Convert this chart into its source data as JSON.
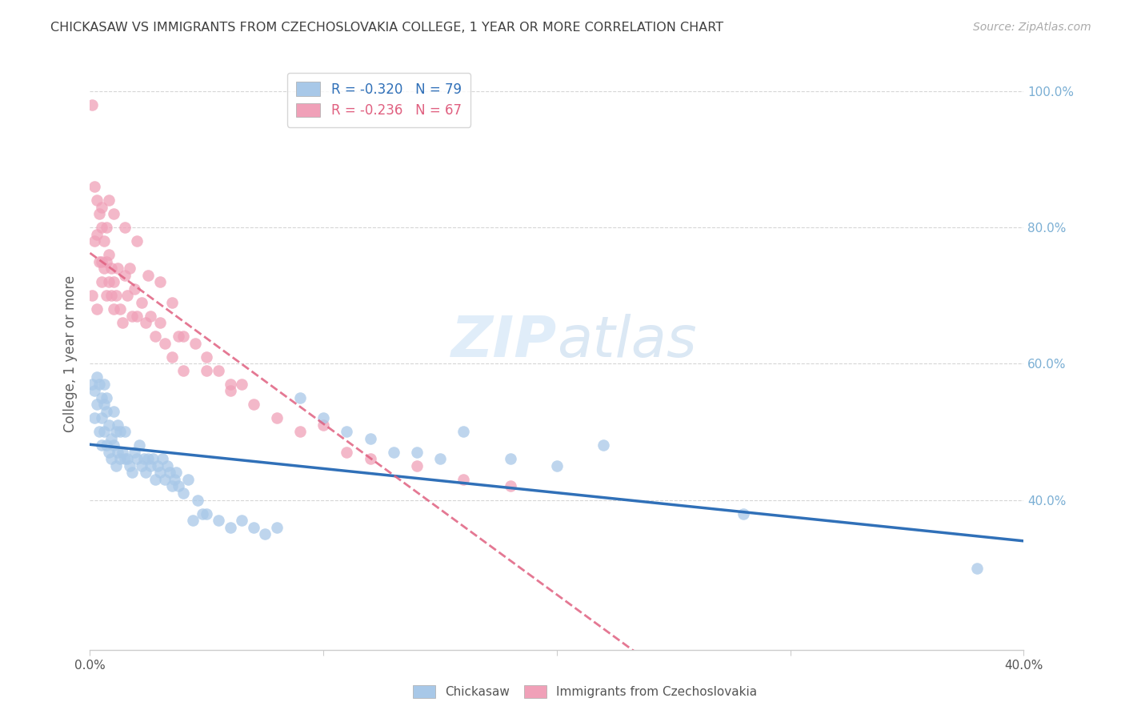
{
  "title": "CHICKASAW VS IMMIGRANTS FROM CZECHOSLOVAKIA COLLEGE, 1 YEAR OR MORE CORRELATION CHART",
  "source": "Source: ZipAtlas.com",
  "ylabel": "College, 1 year or more",
  "xlim": [
    0.0,
    0.4
  ],
  "ylim": [
    0.18,
    1.05
  ],
  "yticks": [
    0.4,
    0.6,
    0.8,
    1.0
  ],
  "ytick_labels": [
    "40.0%",
    "60.0%",
    "80.0%",
    "100.0%"
  ],
  "xticks": [
    0.0,
    0.1,
    0.2,
    0.3,
    0.4
  ],
  "xtick_labels": [
    "0.0%",
    "",
    "",
    "",
    "40.0%"
  ],
  "blue_color": "#a8c8e8",
  "pink_color": "#f0a0b8",
  "blue_line_color": "#3070b8",
  "pink_line_color": "#e06080",
  "watermark_color": "#ddeeff",
  "background_color": "#ffffff",
  "grid_color": "#cccccc",
  "title_color": "#404040",
  "source_color": "#aaaaaa",
  "axis_label_color": "#606060",
  "right_tick_color": "#7bafd4",
  "legend_border_color": "#cccccc",
  "chickasaw_x": [
    0.001,
    0.002,
    0.002,
    0.003,
    0.003,
    0.004,
    0.004,
    0.005,
    0.005,
    0.005,
    0.006,
    0.006,
    0.006,
    0.007,
    0.007,
    0.007,
    0.008,
    0.008,
    0.009,
    0.009,
    0.01,
    0.01,
    0.011,
    0.011,
    0.012,
    0.012,
    0.013,
    0.013,
    0.014,
    0.015,
    0.015,
    0.016,
    0.017,
    0.018,
    0.019,
    0.02,
    0.021,
    0.022,
    0.023,
    0.024,
    0.025,
    0.026,
    0.027,
    0.028,
    0.029,
    0.03,
    0.031,
    0.032,
    0.033,
    0.034,
    0.035,
    0.036,
    0.037,
    0.038,
    0.04,
    0.042,
    0.044,
    0.046,
    0.048,
    0.05,
    0.055,
    0.06,
    0.065,
    0.07,
    0.075,
    0.08,
    0.09,
    0.1,
    0.11,
    0.12,
    0.13,
    0.14,
    0.15,
    0.16,
    0.18,
    0.2,
    0.22,
    0.28,
    0.38
  ],
  "chickasaw_y": [
    0.57,
    0.56,
    0.52,
    0.58,
    0.54,
    0.57,
    0.5,
    0.55,
    0.52,
    0.48,
    0.54,
    0.5,
    0.57,
    0.53,
    0.48,
    0.55,
    0.47,
    0.51,
    0.49,
    0.46,
    0.48,
    0.53,
    0.45,
    0.5,
    0.47,
    0.51,
    0.46,
    0.5,
    0.47,
    0.46,
    0.5,
    0.46,
    0.45,
    0.44,
    0.47,
    0.46,
    0.48,
    0.45,
    0.46,
    0.44,
    0.46,
    0.45,
    0.46,
    0.43,
    0.45,
    0.44,
    0.46,
    0.43,
    0.45,
    0.44,
    0.42,
    0.43,
    0.44,
    0.42,
    0.41,
    0.43,
    0.37,
    0.4,
    0.38,
    0.38,
    0.37,
    0.36,
    0.37,
    0.36,
    0.35,
    0.36,
    0.55,
    0.52,
    0.5,
    0.49,
    0.47,
    0.47,
    0.46,
    0.5,
    0.46,
    0.45,
    0.48,
    0.38,
    0.3
  ],
  "czech_x": [
    0.001,
    0.001,
    0.002,
    0.002,
    0.003,
    0.003,
    0.003,
    0.004,
    0.004,
    0.005,
    0.005,
    0.005,
    0.006,
    0.006,
    0.007,
    0.007,
    0.007,
    0.008,
    0.008,
    0.009,
    0.009,
    0.01,
    0.01,
    0.011,
    0.012,
    0.013,
    0.014,
    0.015,
    0.016,
    0.017,
    0.018,
    0.019,
    0.02,
    0.022,
    0.024,
    0.026,
    0.028,
    0.03,
    0.032,
    0.035,
    0.038,
    0.04,
    0.045,
    0.05,
    0.055,
    0.06,
    0.065,
    0.07,
    0.08,
    0.09,
    0.1,
    0.11,
    0.12,
    0.14,
    0.16,
    0.18,
    0.005,
    0.008,
    0.01,
    0.015,
    0.02,
    0.025,
    0.03,
    0.035,
    0.04,
    0.05,
    0.06
  ],
  "czech_y": [
    0.98,
    0.7,
    0.86,
    0.78,
    0.84,
    0.79,
    0.68,
    0.82,
    0.75,
    0.8,
    0.75,
    0.72,
    0.78,
    0.74,
    0.8,
    0.75,
    0.7,
    0.76,
    0.72,
    0.74,
    0.7,
    0.72,
    0.68,
    0.7,
    0.74,
    0.68,
    0.66,
    0.73,
    0.7,
    0.74,
    0.67,
    0.71,
    0.67,
    0.69,
    0.66,
    0.67,
    0.64,
    0.66,
    0.63,
    0.61,
    0.64,
    0.59,
    0.63,
    0.61,
    0.59,
    0.57,
    0.57,
    0.54,
    0.52,
    0.5,
    0.51,
    0.47,
    0.46,
    0.45,
    0.43,
    0.42,
    0.83,
    0.84,
    0.82,
    0.8,
    0.78,
    0.73,
    0.72,
    0.69,
    0.64,
    0.59,
    0.56
  ],
  "blue_R": "-0.320",
  "blue_N": "79",
  "pink_R": "-0.236",
  "pink_N": "67"
}
